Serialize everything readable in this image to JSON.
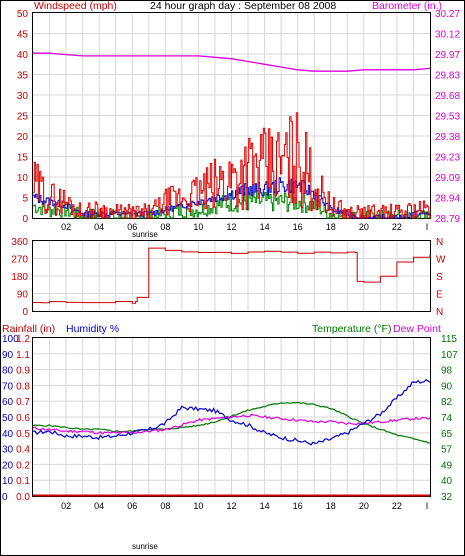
{
  "title": "24 hour graph day : September 08 2008",
  "colors": {
    "windspeed": "#e00000",
    "gust_blue": "#0000cc",
    "wind_green": "#008800",
    "barometer": "#dd00dd",
    "direction": "#cc0000",
    "rain_label": "#cc0000",
    "humidity": "#0000cc",
    "temperature": "#007700",
    "dewpoint": "#dd00dd",
    "grid": "#cccccc",
    "axis_text": "#cc0000"
  },
  "panel1": {
    "left_label": "Windspeed (mph)",
    "right_label": "Barometer (in.)",
    "left_ticks": [
      "50",
      "45",
      "40",
      "35",
      "30",
      "25",
      "20",
      "15",
      "10",
      "5",
      "0"
    ],
    "right_ticks": [
      "30.27",
      "30.12",
      "29.97",
      "29.83",
      "29.68",
      "29.53",
      "29.38",
      "29.23",
      "29.09",
      "28.94",
      "28.79"
    ]
  },
  "panel2": {
    "left_ticks": [
      "360",
      "270",
      "180",
      "90",
      "0"
    ],
    "right_ticks": [
      "N",
      "W",
      "S",
      "E",
      "N"
    ]
  },
  "panel3": {
    "rain_label": "Rainfall (in)",
    "humidity_label": "Humidity %",
    "temp_label": "Temperature (°F)",
    "dew_label": "Dew Point",
    "humidity_ticks": [
      "100",
      "90",
      "80",
      "70",
      "60",
      "50",
      "40",
      "30",
      "20",
      "10",
      "0"
    ],
    "rain_ticks": [
      "1.2",
      "1.1",
      "0.9",
      "0.8",
      "0.7",
      "0.6",
      "0.5",
      "0.4",
      "0.2",
      "0.1",
      "0.0"
    ],
    "temp_ticks": [
      "115",
      "107",
      "98",
      "90",
      "82",
      "74",
      "65",
      "57",
      "49",
      "40",
      "32"
    ]
  },
  "x_axis": {
    "labels": [
      "02",
      "04",
      "06",
      "08",
      "10",
      "12",
      "14",
      "16",
      "18",
      "20",
      "22",
      "I"
    ],
    "sunrise_label": "sunrise"
  },
  "chart_data": [
    {
      "type": "line",
      "title": "24 hour graph day : September 08 2008",
      "x_unit": "hour",
      "ylabel": "Windspeed (mph)",
      "ylim": [
        0,
        50
      ],
      "y2label": "Barometer (in.)",
      "y2lim": [
        28.79,
        30.27
      ],
      "series": [
        {
          "x": [
            0,
            1,
            2,
            3,
            4,
            5,
            6,
            7,
            8,
            9,
            10,
            11,
            12,
            13,
            14,
            15,
            16,
            17,
            18,
            19,
            20,
            21,
            22,
            23,
            24
          ],
          "values": [
            8,
            5,
            4,
            1,
            2,
            1,
            1,
            1,
            4,
            5,
            6,
            8,
            10,
            12,
            12,
            13,
            15,
            8,
            3,
            1,
            1,
            1,
            1,
            2,
            2
          ]
        },
        {
          "x": [
            0,
            1,
            2,
            3,
            4,
            5,
            6,
            7,
            8,
            9,
            10,
            11,
            12,
            13,
            14,
            15,
            16,
            17,
            18,
            19,
            20,
            21,
            22,
            23,
            24
          ],
          "values": [
            5,
            4,
            3,
            1,
            1,
            1,
            1,
            1,
            2,
            3,
            4,
            5,
            6,
            7,
            7,
            8,
            8,
            6,
            2,
            1,
            0,
            0,
            0,
            1,
            1
          ]
        },
        {
          "x": [
            0,
            1,
            2,
            3,
            4,
            5,
            6,
            7,
            8,
            9,
            10,
            11,
            12,
            13,
            14,
            15,
            16,
            17,
            18,
            19,
            20,
            21,
            22,
            23,
            24
          ],
          "values": [
            3,
            2,
            2,
            0,
            1,
            0,
            0,
            0,
            1,
            2,
            2,
            3,
            4,
            4,
            4,
            4,
            4,
            3,
            1,
            0,
            0,
            0,
            0,
            0,
            0
          ]
        },
        {
          "name": "Barometer (in.)",
          "x": [
            0,
            1,
            2,
            3,
            4,
            5,
            6,
            7,
            8,
            9,
            10,
            11,
            12,
            13,
            14,
            15,
            16,
            17,
            18,
            19,
            20,
            21,
            22,
            23,
            24
          ],
          "values": [
            29.98,
            29.98,
            29.97,
            29.96,
            29.96,
            29.96,
            29.96,
            29.96,
            29.96,
            29.96,
            29.96,
            29.95,
            29.94,
            29.92,
            29.9,
            29.88,
            29.86,
            29.85,
            29.85,
            29.85,
            29.86,
            29.86,
            29.86,
            29.86,
            29.87
          ]
        }
      ]
    },
    {
      "type": "line",
      "x_unit": "hour",
      "ylim": [
        0,
        360
      ],
      "series": [
        {
          "x": [
            0,
            0.5,
            1,
            2,
            3,
            4,
            5,
            6,
            6.2,
            6.3,
            7,
            8,
            9,
            10,
            11,
            12,
            13,
            14,
            15,
            16,
            17,
            18,
            19,
            19.5,
            19.6,
            20,
            21,
            22,
            23,
            24
          ],
          "values": [
            45,
            45,
            45,
            45,
            42,
            45,
            45,
            40,
            50,
            70,
            320,
            310,
            305,
            300,
            300,
            300,
            300,
            305,
            300,
            300,
            305,
            300,
            300,
            300,
            150,
            150,
            180,
            250,
            280,
            290
          ]
        }
      ]
    },
    {
      "type": "line",
      "x_unit": "hour",
      "ylabel": "Humidity %",
      "ylim": [
        0,
        100
      ],
      "y2label": "Temperature (°F)",
      "y2lim": [
        32,
        115
      ],
      "series": [
        {
          "name": "Humidity %",
          "x": [
            0,
            1,
            2,
            3,
            4,
            5,
            6,
            7,
            8,
            9,
            10,
            11,
            12,
            13,
            14,
            15,
            16,
            17,
            18,
            19,
            20,
            21,
            22,
            23,
            24
          ],
          "values": [
            40,
            41,
            38,
            38,
            37,
            38,
            40,
            42,
            46,
            56,
            55,
            54,
            48,
            45,
            40,
            37,
            35,
            33,
            36,
            40,
            46,
            52,
            62,
            72,
            73
          ]
        },
        {
          "name": "Temperature (°F)",
          "x": [
            0,
            1,
            2,
            3,
            4,
            5,
            6,
            7,
            8,
            9,
            10,
            11,
            12,
            13,
            14,
            15,
            16,
            17,
            18,
            19,
            20,
            21,
            22,
            23,
            24
          ],
          "values": [
            69,
            69,
            68,
            67,
            67,
            66,
            66,
            67,
            67,
            68,
            69,
            71,
            74,
            77,
            79,
            81,
            81,
            80,
            78,
            74,
            70,
            67,
            64,
            62,
            60
          ]
        },
        {
          "name": "Dew Point",
          "x": [
            0,
            1,
            2,
            3,
            4,
            5,
            6,
            7,
            8,
            9,
            10,
            11,
            12,
            13,
            14,
            15,
            16,
            17,
            18,
            19,
            20,
            21,
            22,
            23,
            24
          ],
          "values": [
            43,
            42,
            41,
            41,
            40,
            40,
            40,
            41,
            42,
            45,
            48,
            49,
            50,
            51,
            50,
            49,
            48,
            47,
            47,
            46,
            46,
            47,
            48,
            49,
            49
          ]
        },
        {
          "name": "Rainfall (in)",
          "x": [
            0,
            24
          ],
          "values": [
            0.0,
            0.0
          ]
        }
      ]
    }
  ]
}
